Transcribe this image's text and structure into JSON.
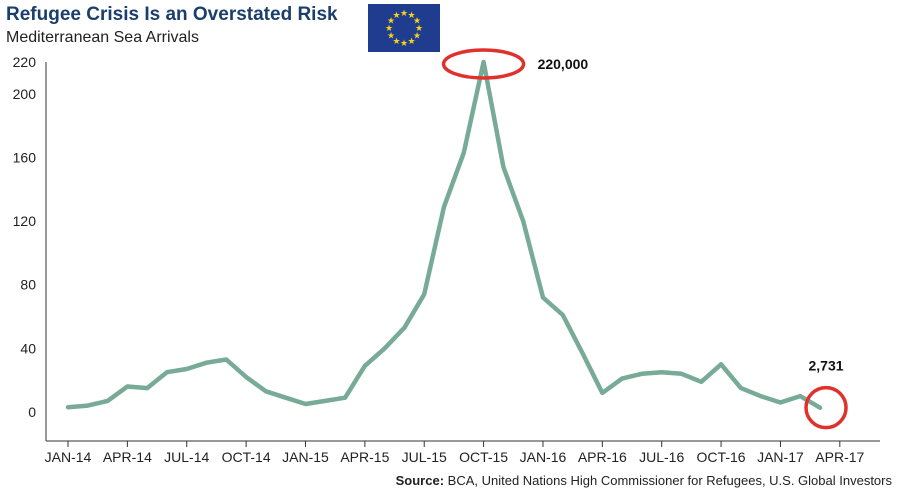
{
  "header": {
    "title": "Refugee Crisis Is an Overstated Risk",
    "subtitle": "Mediterranean Sea Arrivals"
  },
  "flag": {
    "icon": "eu-flag-icon",
    "background": "#1f3c8f",
    "star_color": "#f5d31a"
  },
  "footer": {
    "source_label": "Source:",
    "source_text": " BCA, United Nations High Commissioner for Refugees, U.S. Global Investors"
  },
  "colors": {
    "line": "#78ab97",
    "highlight": "#e0322c",
    "axis": "#333333"
  },
  "chart_data": {
    "type": "line",
    "title": "Refugee Crisis Is an Overstated Risk",
    "subtitle": "Mediterranean Sea Arrivals",
    "xlabel": "",
    "ylabel": "",
    "ylim": [
      0,
      220
    ],
    "yticks": [
      0,
      40,
      80,
      120,
      160,
      200,
      220
    ],
    "grid": false,
    "x_tick_labels": [
      "JAN-14",
      "APR-14",
      "JUL-14",
      "OCT-14",
      "JAN-15",
      "APR-15",
      "JUL-15",
      "OCT-15",
      "JAN-16",
      "APR-16",
      "JUL-16",
      "OCT-16",
      "JAN-17",
      "APR-17"
    ],
    "x": [
      "2014-01",
      "2014-02",
      "2014-03",
      "2014-04",
      "2014-05",
      "2014-06",
      "2014-07",
      "2014-08",
      "2014-09",
      "2014-10",
      "2014-11",
      "2014-12",
      "2015-01",
      "2015-02",
      "2015-03",
      "2015-04",
      "2015-05",
      "2015-06",
      "2015-07",
      "2015-08",
      "2015-09",
      "2015-10",
      "2015-11",
      "2015-12",
      "2016-01",
      "2016-02",
      "2016-03",
      "2016-04",
      "2016-05",
      "2016-06",
      "2016-07",
      "2016-08",
      "2016-09",
      "2016-10",
      "2016-11",
      "2016-12",
      "2017-01",
      "2017-02",
      "2017-03"
    ],
    "series": [
      {
        "values": [
          3,
          4,
          7,
          16,
          15,
          25,
          27,
          31,
          33,
          22,
          13,
          9,
          5,
          7,
          9,
          29,
          40,
          53,
          74,
          129,
          163,
          220,
          154,
          120,
          72,
          61,
          37,
          12,
          21,
          24,
          25,
          24,
          19,
          30,
          15,
          10,
          6,
          10,
          2.731
        ]
      }
    ],
    "annotations": [
      {
        "label": "220,000",
        "x": "2015-10",
        "y": 220
      },
      {
        "label": "2,731",
        "x": "2017-03",
        "y": 2.731
      }
    ]
  }
}
